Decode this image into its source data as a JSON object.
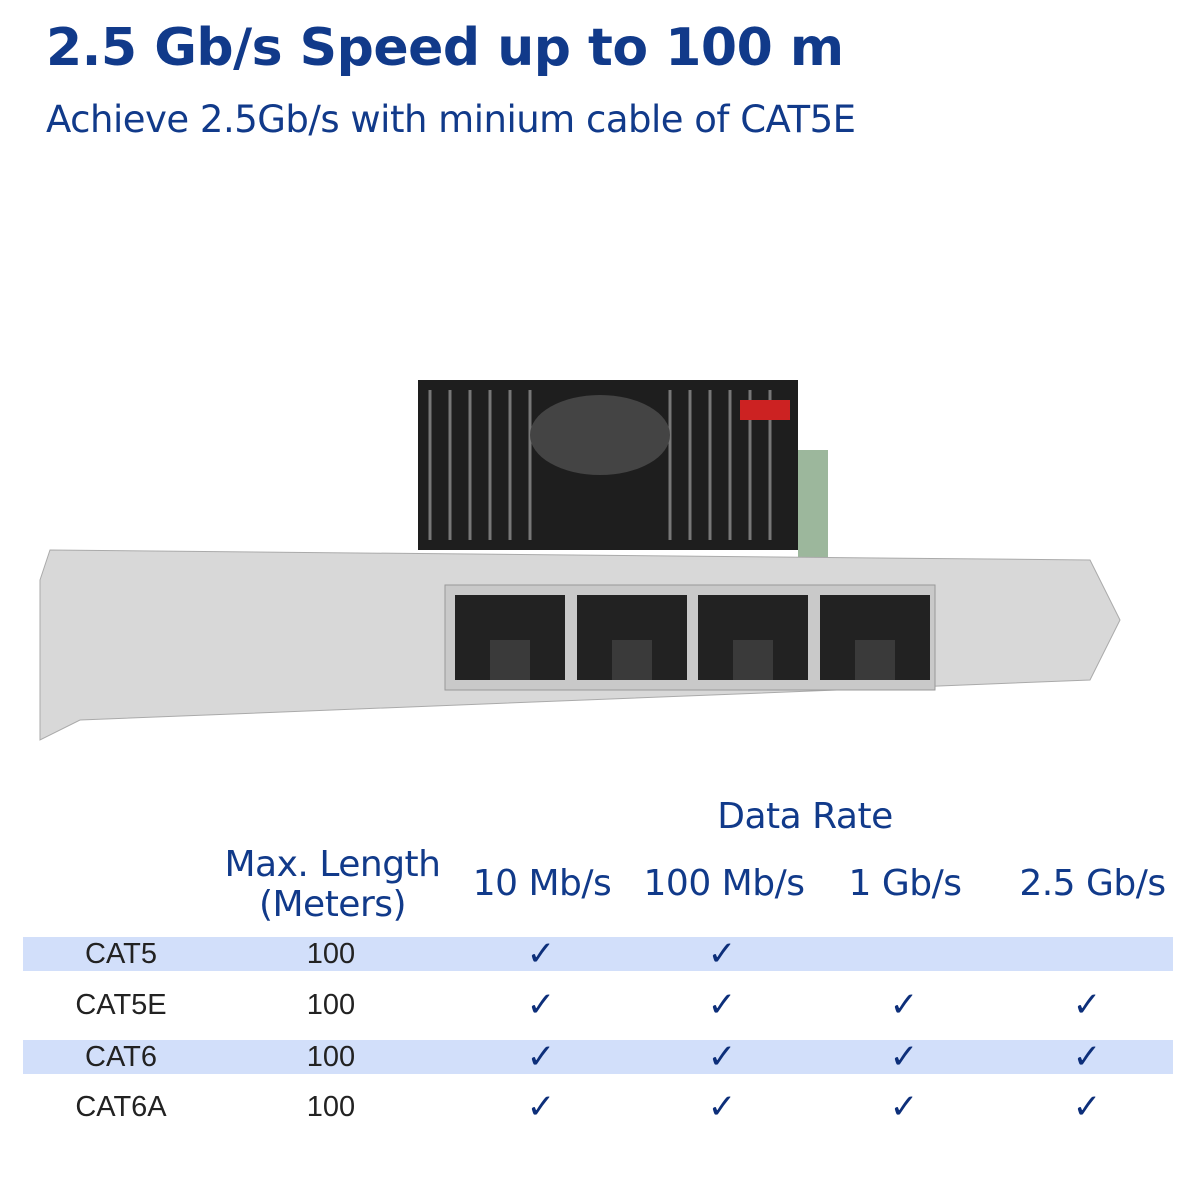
{
  "header": {
    "title": "2.5 Gb/s Speed up to 100 m",
    "subtitle": "Achieve 2.5Gb/s with minium cable of CAT5E"
  },
  "product_image": {
    "description_icon": "network-card-4-port-rj45"
  },
  "table": {
    "group_header": "Data Rate",
    "length_header_line1": "Max. Length",
    "length_header_line2": "(Meters)",
    "rate_headers": [
      "10 Mb/s",
      "100 Mb/s",
      "1 Gb/s",
      "2.5 Gb/s"
    ],
    "check_glyph": "✓",
    "rows": [
      {
        "cable": "CAT5",
        "length": "100",
        "supported": [
          true,
          true,
          false,
          false
        ]
      },
      {
        "cable": "CAT5E",
        "length": "100",
        "supported": [
          true,
          true,
          true,
          true
        ]
      },
      {
        "cable": "CAT6",
        "length": "100",
        "supported": [
          true,
          true,
          true,
          true
        ]
      },
      {
        "cable": "CAT6A",
        "length": "100",
        "supported": [
          true,
          true,
          true,
          true
        ]
      }
    ]
  },
  "colors": {
    "accent": "#113a8a",
    "band": "#d2dffa",
    "check": "#0d2f7a"
  }
}
